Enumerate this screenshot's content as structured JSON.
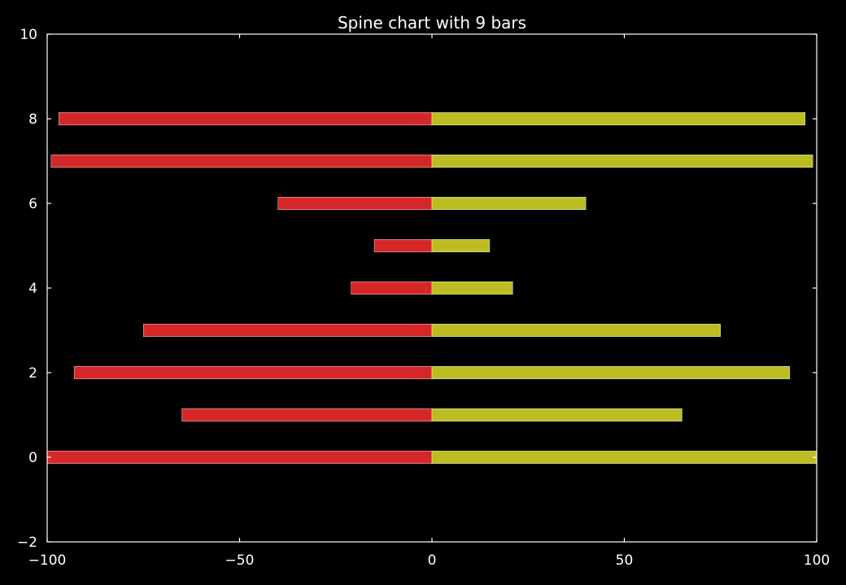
{
  "chart_data": {
    "type": "bar",
    "orientation": "horizontal",
    "title": "Spine chart with 9 bars",
    "xlabel": "",
    "ylabel": "",
    "xlim": [
      -100,
      100
    ],
    "ylim": [
      -2,
      10
    ],
    "xticks": [
      -100,
      -50,
      0,
      50,
      100
    ],
    "xtick_labels": [
      "−100",
      "−50",
      "0",
      "50",
      "100"
    ],
    "yticks": [
      -2,
      0,
      2,
      4,
      6,
      8,
      10
    ],
    "ytick_labels": [
      "−2",
      "0",
      "2",
      "4",
      "6",
      "8",
      "10"
    ],
    "categories": [
      0,
      1,
      2,
      3,
      4,
      5,
      6,
      7,
      8
    ],
    "series": [
      {
        "color": "#d62728",
        "values": [
          -100,
          -65,
          -93,
          -75,
          -21,
          -15,
          -40,
          -99,
          -97
        ]
      },
      {
        "color": "#bcbd22",
        "values": [
          100,
          65,
          93,
          75,
          21,
          15,
          40,
          99,
          97
        ]
      }
    ],
    "grid": false,
    "background": "#000000",
    "axis_color": "#ffffff"
  }
}
